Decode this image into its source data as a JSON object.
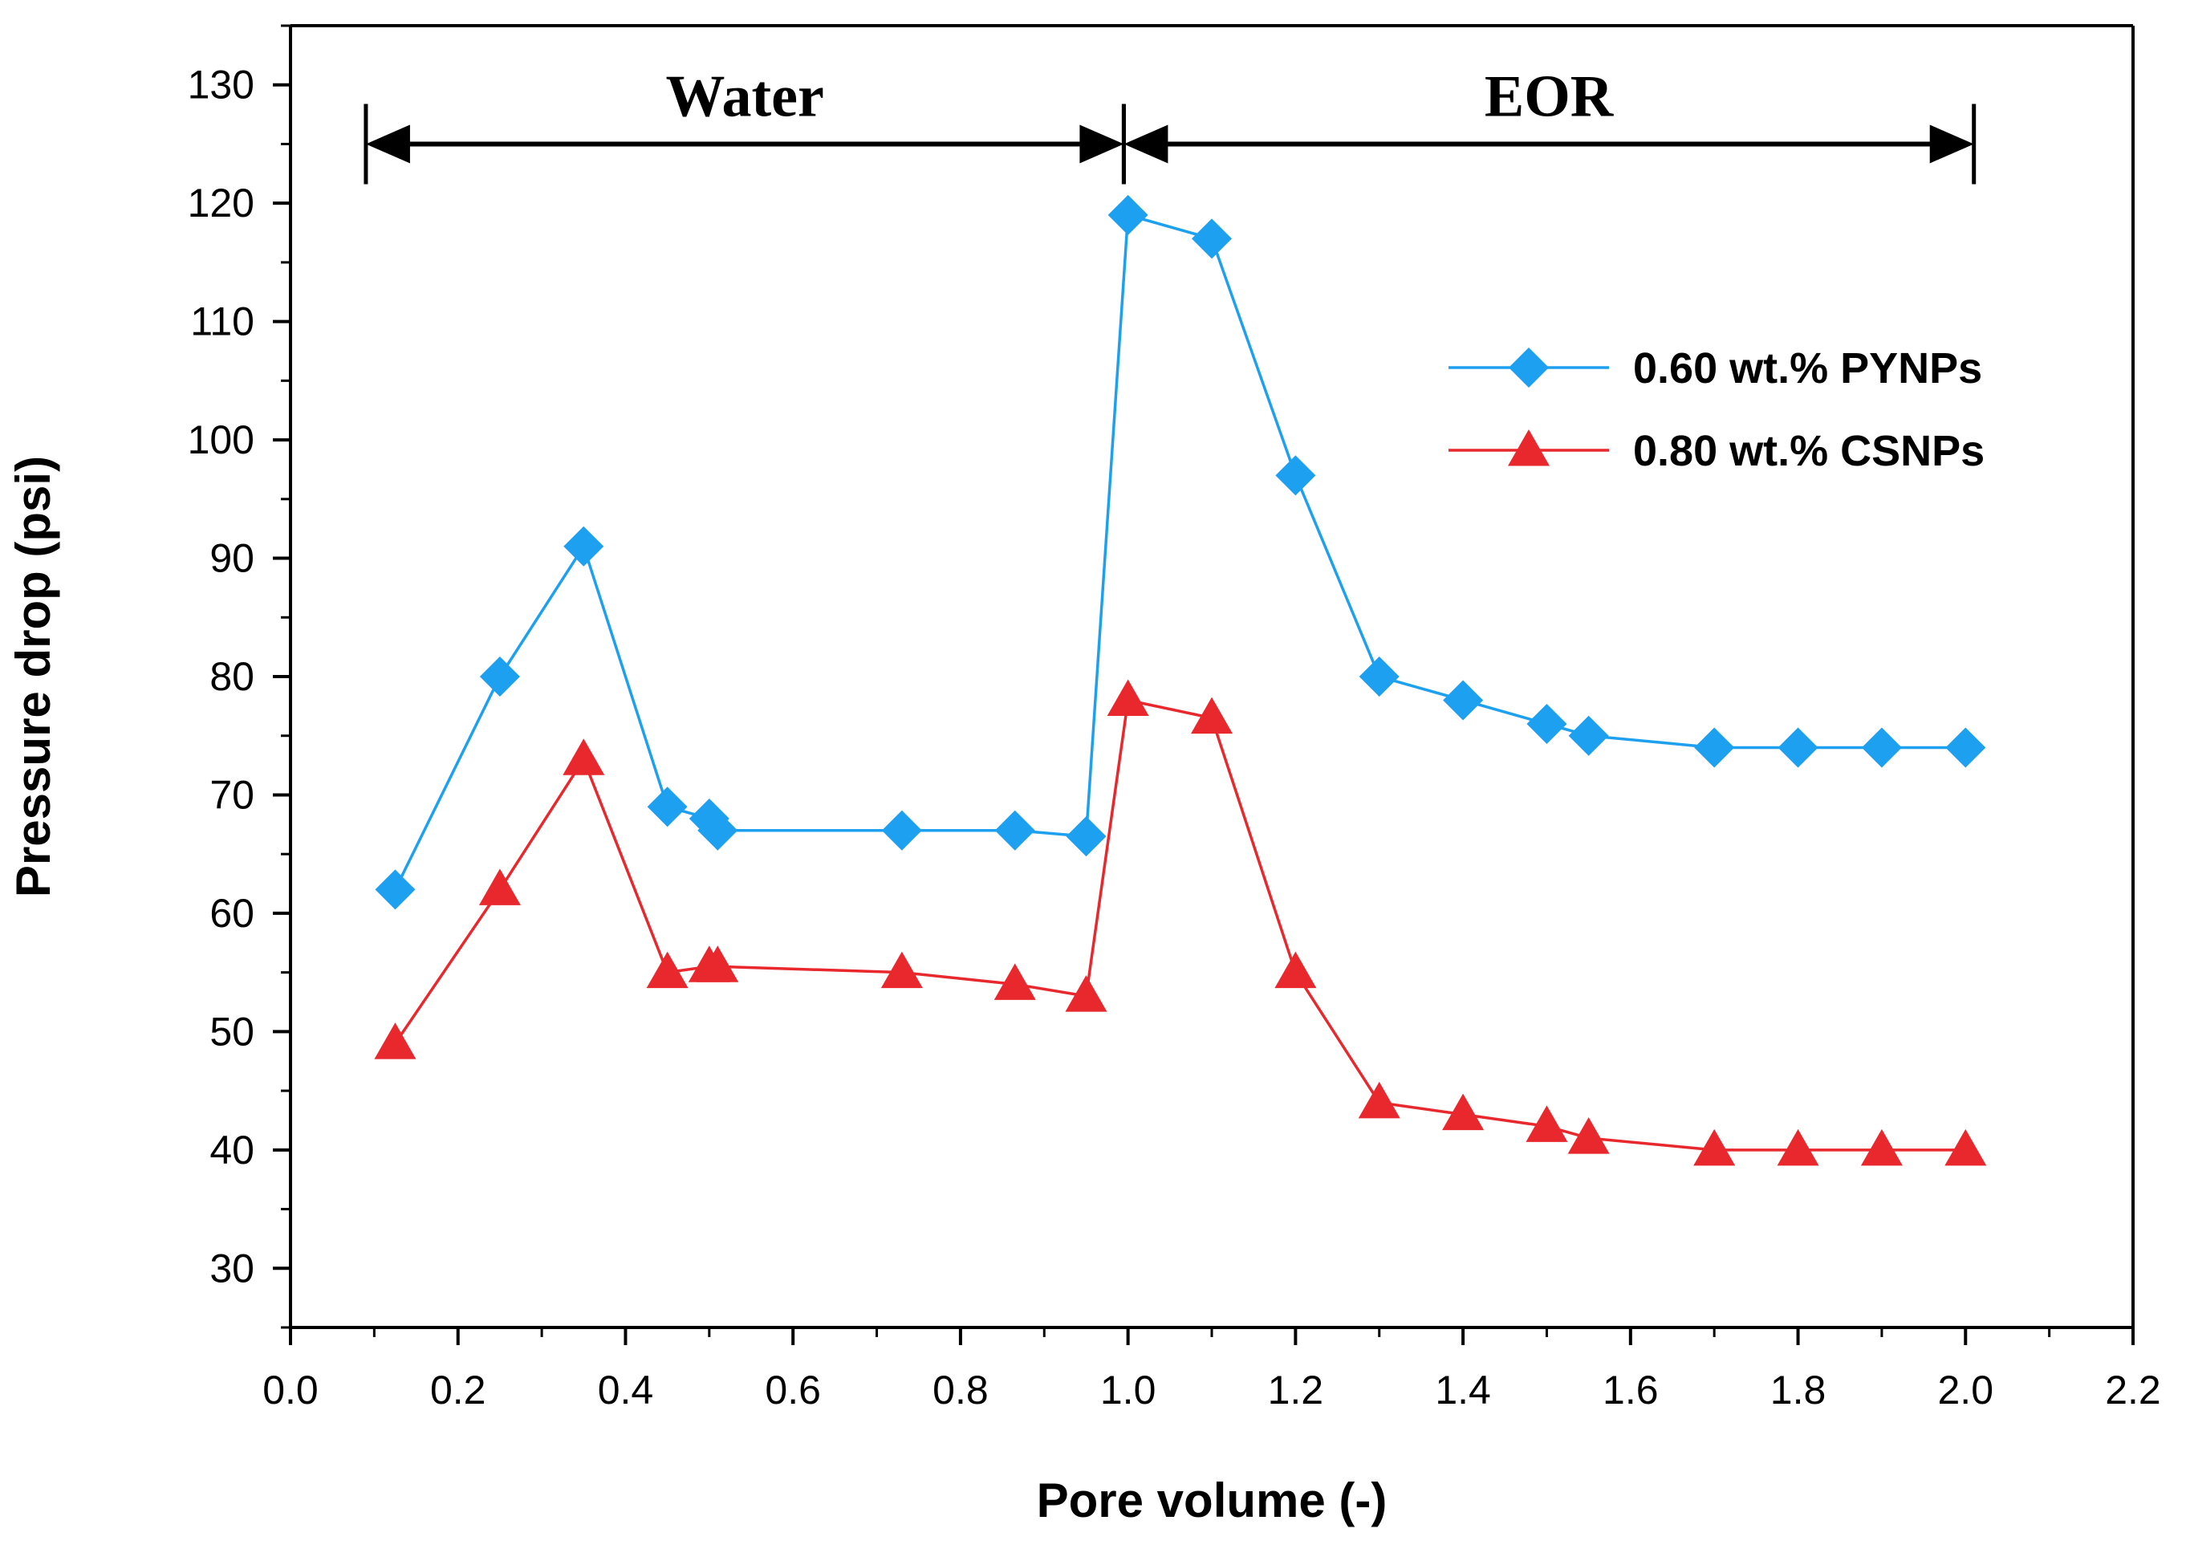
{
  "chart_data": {
    "type": "line",
    "xlabel": "Pore volume (-)",
    "ylabel": "Pressure drop (psi)",
    "xlim": [
      0.0,
      2.2
    ],
    "ylim": [
      25,
      135
    ],
    "x_ticks": [
      "0.0",
      "0.2",
      "0.4",
      "0.6",
      "0.8",
      "1.0",
      "1.2",
      "1.4",
      "1.6",
      "1.8",
      "2.0",
      "2.2"
    ],
    "y_ticks": [
      "30",
      "40",
      "50",
      "60",
      "70",
      "80",
      "90",
      "100",
      "110",
      "120",
      "130"
    ],
    "grid": false,
    "legend_position": "top-right",
    "series": [
      {
        "name": "0.60 wt.% PYNPs",
        "color": "#1ea0f0",
        "marker": "diamond",
        "x": [
          0.125,
          0.25,
          0.35,
          0.45,
          0.5,
          0.51,
          0.73,
          0.865,
          0.95,
          1.0,
          1.1,
          1.2,
          1.3,
          1.4,
          1.5,
          1.55,
          1.7,
          1.8,
          1.9,
          2.0
        ],
        "y": [
          62,
          80,
          91,
          69,
          68,
          67,
          67,
          67,
          66.5,
          119,
          117,
          97,
          80,
          78,
          76,
          75,
          74,
          74,
          74,
          74
        ]
      },
      {
        "name": "0.80 wt.% CSNPs",
        "color": "#e8282d",
        "marker": "triangle",
        "x": [
          0.125,
          0.25,
          0.35,
          0.45,
          0.5,
          0.51,
          0.73,
          0.865,
          0.95,
          1.0,
          1.1,
          1.2,
          1.3,
          1.4,
          1.5,
          1.55,
          1.7,
          1.8,
          1.9,
          2.0
        ],
        "y": [
          49,
          62,
          73,
          55,
          55.5,
          55.5,
          55,
          54,
          53,
          78,
          76.5,
          55,
          44,
          43,
          42,
          41,
          40,
          40,
          40,
          40
        ]
      }
    ],
    "annotations": [
      {
        "text": "Water",
        "x_range": [
          0.09,
          0.995
        ],
        "y": 125
      },
      {
        "text": "EOR",
        "x_range": [
          0.995,
          2.01
        ],
        "y": 125
      }
    ]
  }
}
